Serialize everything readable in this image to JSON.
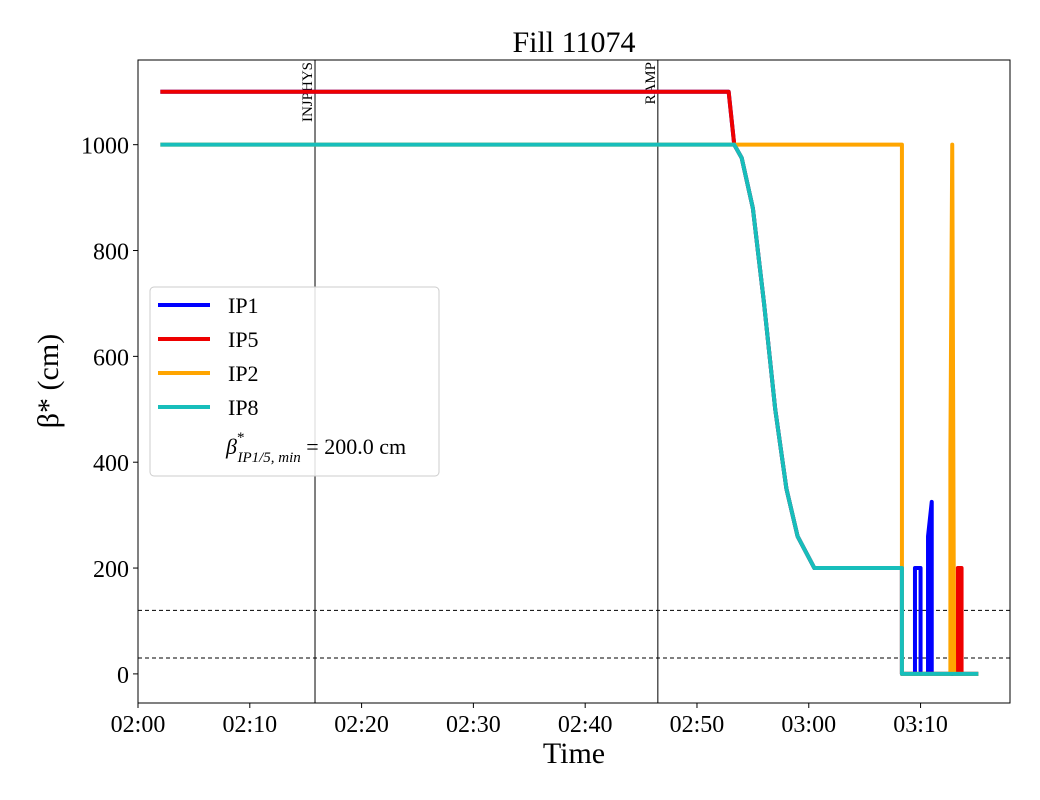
{
  "chart_data": {
    "type": "line",
    "title": "Fill 11074",
    "xlabel": "Time",
    "ylabel": "β* (cm)",
    "xlim": [
      "02:00",
      "03:18"
    ],
    "ylim": [
      -55,
      1160
    ],
    "x_ticks": [
      "02:00",
      "02:10",
      "02:20",
      "02:30",
      "02:40",
      "02:50",
      "03:00",
      "03:10"
    ],
    "y_ticks": [
      0,
      200,
      400,
      600,
      800,
      1000
    ],
    "grid": false,
    "legend_position": "center-left",
    "vlines": [
      {
        "x": "02:15:50",
        "label": "INJPHYS"
      },
      {
        "x": "02:46:30",
        "label": "RAMP"
      }
    ],
    "hlines": [
      30,
      120
    ],
    "min_annotation": {
      "symbol": "β",
      "sup": "*",
      "sub": "IP1/5, min",
      "value_text": " = 200.0 cm"
    },
    "series": [
      {
        "name": "IP1",
        "color": "#0000ff",
        "points": [
          [
            "02:02:00",
            1100
          ],
          [
            "02:52:50",
            1100
          ],
          [
            "02:53:20",
            1000
          ],
          [
            "02:54:00",
            975
          ],
          [
            "02:55:00",
            880
          ],
          [
            "02:56:00",
            700
          ],
          [
            "02:57:00",
            500
          ],
          [
            "02:58:00",
            350
          ],
          [
            "02:59:00",
            260
          ],
          [
            "03:00:30",
            200
          ],
          [
            "03:08:20",
            200
          ],
          [
            "03:08:20",
            0
          ],
          [
            "03:09:30",
            0
          ],
          [
            "03:09:30",
            200
          ],
          [
            "03:10:00",
            200
          ],
          [
            "03:10:00",
            0
          ],
          [
            "03:10:40",
            0
          ],
          [
            "03:10:40",
            260
          ],
          [
            "03:11:00",
            325
          ],
          [
            "03:11:00",
            0
          ],
          [
            "03:15:10",
            0
          ]
        ]
      },
      {
        "name": "IP5",
        "color": "#ee0000",
        "points": [
          [
            "02:02:00",
            1100
          ],
          [
            "02:52:50",
            1100
          ],
          [
            "02:53:20",
            1000
          ],
          [
            "02:54:00",
            975
          ],
          [
            "02:55:00",
            880
          ],
          [
            "02:56:00",
            700
          ],
          [
            "02:57:00",
            500
          ],
          [
            "02:58:00",
            350
          ],
          [
            "02:59:00",
            260
          ],
          [
            "03:00:30",
            200
          ],
          [
            "03:08:20",
            200
          ],
          [
            "03:08:20",
            0
          ],
          [
            "03:13:20",
            0
          ],
          [
            "03:13:20",
            200
          ],
          [
            "03:13:40",
            200
          ],
          [
            "03:13:40",
            0
          ],
          [
            "03:15:10",
            0
          ]
        ]
      },
      {
        "name": "IP2",
        "color": "#ffa500",
        "points": [
          [
            "02:02:00",
            1000
          ],
          [
            "03:08:20",
            1000
          ],
          [
            "03:08:20",
            0
          ],
          [
            "03:12:40",
            0
          ],
          [
            "03:12:40",
            420
          ],
          [
            "03:12:50",
            1000
          ],
          [
            "03:13:00",
            0
          ],
          [
            "03:15:10",
            0
          ]
        ]
      },
      {
        "name": "IP8",
        "color": "#17bebb",
        "points": [
          [
            "02:02:00",
            1000
          ],
          [
            "02:53:20",
            1000
          ],
          [
            "02:54:00",
            975
          ],
          [
            "02:55:00",
            880
          ],
          [
            "02:56:00",
            700
          ],
          [
            "02:57:00",
            500
          ],
          [
            "02:58:00",
            350
          ],
          [
            "02:59:00",
            260
          ],
          [
            "03:00:30",
            200
          ],
          [
            "03:08:20",
            200
          ],
          [
            "03:08:20",
            0
          ],
          [
            "03:15:10",
            0
          ]
        ]
      }
    ]
  }
}
